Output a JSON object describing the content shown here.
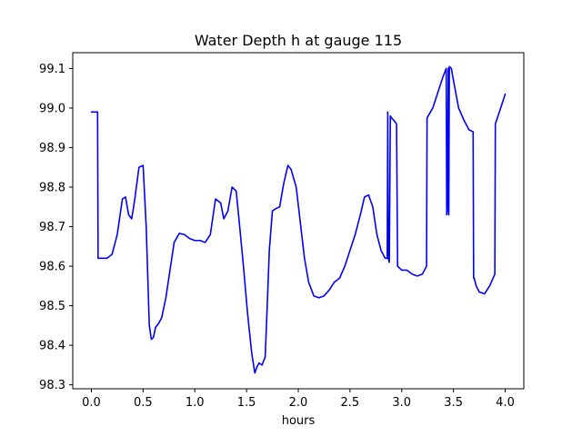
{
  "chart_data": {
    "type": "line",
    "title": "Water Depth h at gauge 115",
    "xlabel": "hours",
    "ylabel": "",
    "xlim": [
      -0.18,
      4.18
    ],
    "ylim": [
      98.29,
      99.14
    ],
    "xticks": [
      0.0,
      0.5,
      1.0,
      1.5,
      2.0,
      2.5,
      3.0,
      3.5,
      4.0
    ],
    "xtick_labels": [
      "0.0",
      "0.5",
      "1.0",
      "1.5",
      "2.0",
      "2.5",
      "3.0",
      "3.5",
      "4.0"
    ],
    "yticks": [
      98.3,
      98.4,
      98.5,
      98.6,
      98.7,
      98.8,
      98.9,
      99.0,
      99.1
    ],
    "ytick_labels": [
      "98.3",
      "98.4",
      "98.5",
      "98.6",
      "98.7",
      "98.8",
      "98.9",
      "99.0",
      "99.1"
    ],
    "grid": false,
    "series": [
      {
        "color": "#0000ff",
        "x": [
          0.0,
          0.06,
          0.065,
          0.15,
          0.2,
          0.25,
          0.3,
          0.33,
          0.36,
          0.39,
          0.42,
          0.46,
          0.5,
          0.53,
          0.56,
          0.58,
          0.6,
          0.62,
          0.65,
          0.68,
          0.72,
          0.76,
          0.8,
          0.85,
          0.9,
          0.95,
          1.0,
          1.05,
          1.1,
          1.15,
          1.2,
          1.25,
          1.28,
          1.32,
          1.36,
          1.4,
          1.43,
          1.47,
          1.51,
          1.55,
          1.58,
          1.6,
          1.62,
          1.65,
          1.68,
          1.7,
          1.72,
          1.75,
          1.78,
          1.82,
          1.86,
          1.9,
          1.93,
          1.98,
          2.02,
          2.06,
          2.1,
          2.15,
          2.2,
          2.25,
          2.3,
          2.35,
          2.4,
          2.45,
          2.5,
          2.55,
          2.6,
          2.64,
          2.68,
          2.72,
          2.76,
          2.8,
          2.84,
          2.86,
          2.865,
          2.87,
          2.88,
          2.89,
          2.9,
          2.92,
          2.95,
          2.96,
          3.0,
          3.05,
          3.1,
          3.15,
          3.2,
          3.24,
          3.245,
          3.3,
          3.35,
          3.4,
          3.43,
          3.435,
          3.44,
          3.45,
          3.455,
          3.46,
          3.48,
          3.5,
          3.55,
          3.6,
          3.65,
          3.69,
          3.695,
          3.7,
          3.72,
          3.75,
          3.8,
          3.85,
          3.9,
          3.905,
          3.95,
          4.0
        ],
        "values": [
          98.99,
          98.99,
          98.62,
          98.62,
          98.63,
          98.68,
          98.77,
          98.775,
          98.73,
          98.72,
          98.77,
          98.85,
          98.855,
          98.7,
          98.45,
          98.415,
          98.42,
          98.445,
          98.455,
          98.47,
          98.52,
          98.59,
          98.66,
          98.683,
          98.68,
          98.67,
          98.665,
          98.665,
          98.66,
          98.68,
          98.77,
          98.76,
          98.72,
          98.74,
          98.8,
          98.79,
          98.71,
          98.6,
          98.48,
          98.38,
          98.33,
          98.345,
          98.355,
          98.35,
          98.37,
          98.5,
          98.64,
          98.74,
          98.745,
          98.75,
          98.81,
          98.855,
          98.845,
          98.8,
          98.71,
          98.62,
          98.56,
          98.525,
          98.52,
          98.525,
          98.54,
          98.56,
          98.57,
          98.6,
          98.64,
          98.68,
          98.73,
          98.775,
          98.78,
          98.75,
          98.68,
          98.64,
          98.62,
          98.62,
          98.99,
          98.62,
          98.61,
          98.98,
          98.975,
          98.97,
          98.96,
          98.6,
          98.59,
          98.59,
          98.58,
          98.575,
          98.58,
          98.6,
          98.975,
          99.0,
          99.04,
          99.08,
          99.1,
          98.73,
          98.74,
          99.1,
          98.73,
          99.105,
          99.1,
          99.07,
          99.0,
          98.97,
          98.945,
          98.94,
          98.57,
          98.57,
          98.55,
          98.535,
          98.53,
          98.55,
          98.58,
          98.96,
          98.995,
          99.035
        ]
      }
    ]
  }
}
